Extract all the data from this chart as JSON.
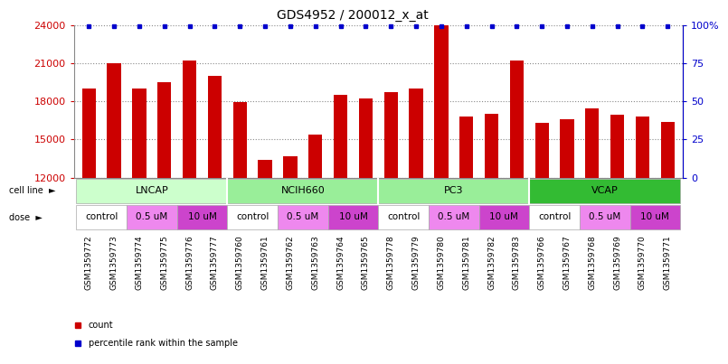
{
  "title": "GDS4952 / 200012_x_at",
  "samples": [
    "GSM1359772",
    "GSM1359773",
    "GSM1359774",
    "GSM1359775",
    "GSM1359776",
    "GSM1359777",
    "GSM1359760",
    "GSM1359761",
    "GSM1359762",
    "GSM1359763",
    "GSM1359764",
    "GSM1359765",
    "GSM1359778",
    "GSM1359779",
    "GSM1359780",
    "GSM1359781",
    "GSM1359782",
    "GSM1359783",
    "GSM1359766",
    "GSM1359767",
    "GSM1359768",
    "GSM1359769",
    "GSM1359770",
    "GSM1359771"
  ],
  "bar_values": [
    19000,
    21000,
    19000,
    19500,
    21200,
    20000,
    17900,
    13400,
    13700,
    15400,
    18500,
    18200,
    18700,
    19000,
    24000,
    16800,
    17000,
    21200,
    16300,
    16600,
    17400,
    16900,
    16800,
    16400
  ],
  "bar_color": "#cc0000",
  "dot_color": "#0000cc",
  "ymin": 12000,
  "ymax": 24000,
  "yticks_left": [
    12000,
    15000,
    18000,
    21000,
    24000
  ],
  "yticks_right": [
    0,
    25,
    50,
    75,
    100
  ],
  "cell_line_groups": [
    {
      "name": "LNCAP",
      "start": 0,
      "end": 6,
      "color": "#ccffcc"
    },
    {
      "name": "NCIH660",
      "start": 6,
      "end": 12,
      "color": "#99ee99"
    },
    {
      "name": "PC3",
      "start": 12,
      "end": 18,
      "color": "#99ee99"
    },
    {
      "name": "VCAP",
      "start": 18,
      "end": 24,
      "color": "#33bb33"
    }
  ],
  "dose_groups": [
    {
      "name": "control",
      "start": 0,
      "end": 2,
      "color": "#ffffff"
    },
    {
      "name": "0.5 uM",
      "start": 2,
      "end": 4,
      "color": "#ee88ee"
    },
    {
      "name": "10 uM",
      "start": 4,
      "end": 6,
      "color": "#cc44cc"
    },
    {
      "name": "control",
      "start": 6,
      "end": 8,
      "color": "#ffffff"
    },
    {
      "name": "0.5 uM",
      "start": 8,
      "end": 10,
      "color": "#ee88ee"
    },
    {
      "name": "10 uM",
      "start": 10,
      "end": 12,
      "color": "#cc44cc"
    },
    {
      "name": "control",
      "start": 12,
      "end": 14,
      "color": "#ffffff"
    },
    {
      "name": "0.5 uM",
      "start": 14,
      "end": 16,
      "color": "#ee88ee"
    },
    {
      "name": "10 uM",
      "start": 16,
      "end": 18,
      "color": "#cc44cc"
    },
    {
      "name": "control",
      "start": 18,
      "end": 20,
      "color": "#ffffff"
    },
    {
      "name": "0.5 uM",
      "start": 20,
      "end": 22,
      "color": "#ee88ee"
    },
    {
      "name": "10 uM",
      "start": 22,
      "end": 24,
      "color": "#cc44cc"
    }
  ],
  "bar_color_red": "#cc0000",
  "dot_color_blue": "#0000cc",
  "left_tick_color": "#cc0000",
  "right_tick_color": "#0000cc",
  "grid_color": "#888888",
  "bg_color": "#ffffff",
  "xtick_bg_color": "#dddddd",
  "label_arrow_color": "#000000"
}
